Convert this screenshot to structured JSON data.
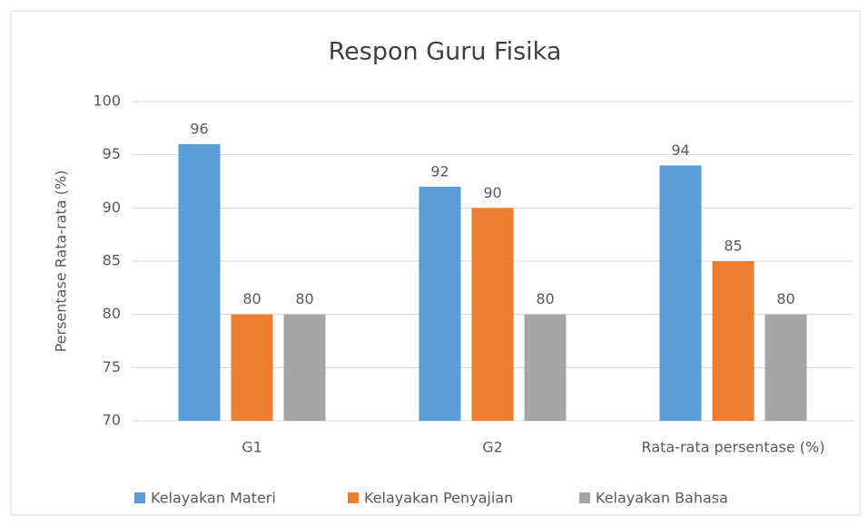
{
  "chart_data": {
    "type": "bar",
    "title": "Respon Guru Fisika",
    "y_label": "Persentase Rata-rata (%)",
    "categories": [
      "G1",
      "G2",
      "Rata-rata persentase (%)"
    ],
    "series": [
      {
        "name": "Kelayakan Materi",
        "color": "#5b9bd5",
        "values": [
          96,
          92,
          94
        ]
      },
      {
        "name": "Kelayakan Penyajian",
        "color": "#ed7d31",
        "values": [
          80,
          90,
          85
        ]
      },
      {
        "name": "Kelayakan Bahasa",
        "color": "#a5a5a5",
        "values": [
          80,
          80,
          80
        ]
      }
    ],
    "ylim": [
      70,
      100
    ],
    "yticks": [
      70,
      75,
      80,
      85,
      90,
      95,
      100
    ],
    "grid": true,
    "legend": "bottom"
  }
}
